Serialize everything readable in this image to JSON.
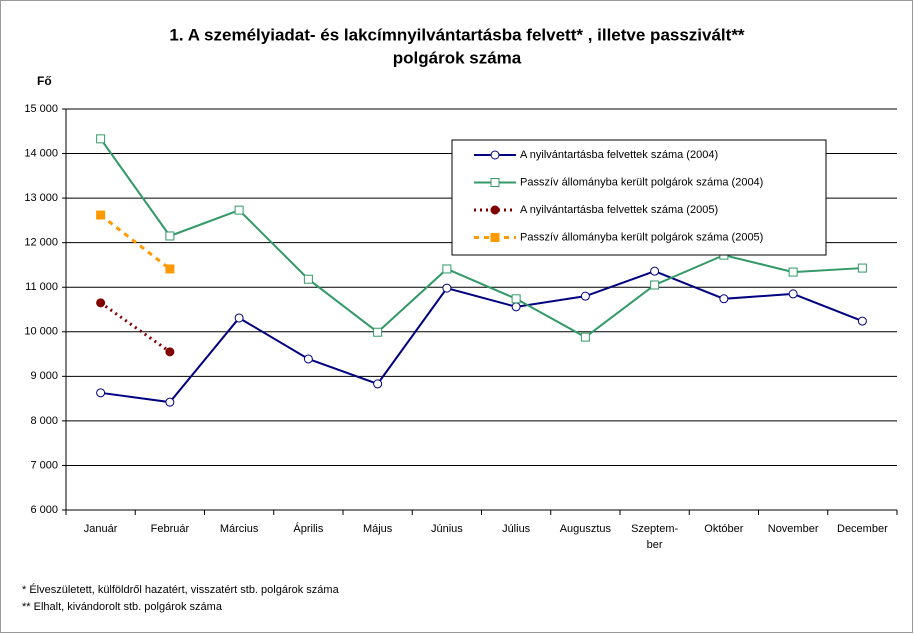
{
  "chart_data": {
    "type": "line",
    "title": [
      "1. A személyiadat- és lakcímnyilvántartásba felvett* , illetve passzivált**",
      "polgárok száma"
    ],
    "y_label": "Fő",
    "categories": [
      "Január",
      "Február",
      "Március",
      "Április",
      "Május",
      "Június",
      "Július",
      "Augusztus",
      "Szeptem-\nber",
      "Október",
      "November",
      "December"
    ],
    "series": [
      {
        "name": "A nyilvántartásba felvettek száma (2004)",
        "color": "#000080",
        "style": "solid",
        "marker": "circle",
        "marker_fill": "#ffffff",
        "values": [
          8630,
          8420,
          10310,
          9390,
          8830,
          10980,
          10560,
          10800,
          11360,
          10740,
          10850,
          10240
        ]
      },
      {
        "name": "Passzív állományba került polgárok száma (2004)",
        "color": "#339966",
        "style": "solid",
        "marker": "square",
        "marker_fill": "#ffffff",
        "values": [
          14330,
          12150,
          12730,
          11180,
          9990,
          11410,
          10740,
          9880,
          11050,
          11720,
          11340,
          11430
        ]
      },
      {
        "name": "A nyilvántartásba felvettek száma (2005)",
        "color": "#800000",
        "style": "dotted",
        "marker": "circle",
        "marker_fill": "#800000",
        "values": [
          10650,
          9550,
          null,
          null,
          null,
          null,
          null,
          null,
          null,
          null,
          null,
          null
        ]
      },
      {
        "name": "Passzív állományba került polgárok száma (2005)",
        "color": "#ff9900",
        "style": "dashed",
        "marker": "square",
        "marker_fill": "#ff9900",
        "values": [
          12620,
          11410,
          null,
          null,
          null,
          null,
          null,
          null,
          null,
          null,
          null,
          null
        ]
      }
    ],
    "ylim": [
      6000,
      15000
    ],
    "yticks": [
      {
        "value": 6000,
        "label": "6 000"
      },
      {
        "value": 7000,
        "label": "7 000"
      },
      {
        "value": 8000,
        "label": "8 000"
      },
      {
        "value": 9000,
        "label": "9 000"
      },
      {
        "value": 10000,
        "label": "10 000"
      },
      {
        "value": 11000,
        "label": "11 000"
      },
      {
        "value": 12000,
        "label": "12 000"
      },
      {
        "value": 13000,
        "label": "13 000"
      },
      {
        "value": 14000,
        "label": "14 000"
      },
      {
        "value": 15000,
        "label": "15 000"
      }
    ],
    "grid": true,
    "legend": "top-right",
    "footnotes": [
      "* Élveszületett, külföldről hazatért, visszatért stb. polgárok száma",
      "** Elhalt, kivándorolt stb. polgárok száma"
    ]
  }
}
